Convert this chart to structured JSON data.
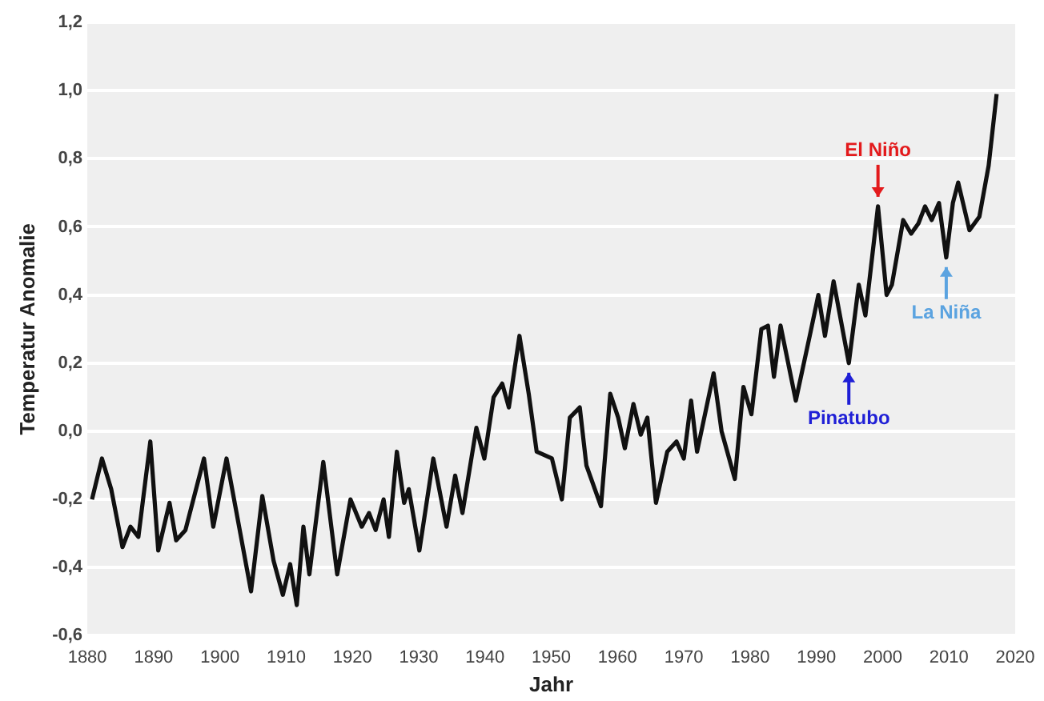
{
  "chart_data": {
    "type": "line",
    "xlabel": "Jahr",
    "ylabel": "Temperatur Anomalie",
    "x": [
      1880.7,
      1882.2,
      1883.6,
      1885.3,
      1886.5,
      1887.7,
      1889.5,
      1890.7,
      1892.4,
      1893.4,
      1894.8,
      1897.6,
      1899,
      1901,
      1904.7,
      1906.4,
      1908.1,
      1909.5,
      1910.6,
      1911.6,
      1912.6,
      1913.5,
      1915.6,
      1917.7,
      1919.7,
      1921.4,
      1922.5,
      1923.5,
      1924.7,
      1925.5,
      1926.7,
      1927.8,
      1928.5,
      1930.1,
      1932.2,
      1934.2,
      1935.5,
      1936.6,
      1938.7,
      1939.9,
      1941.3,
      1942.6,
      1943.6,
      1945.2,
      1946.6,
      1947.8,
      1950.1,
      1951.6,
      1952.8,
      1954.3,
      1955.3,
      1957.5,
      1958.9,
      1960.1,
      1961.1,
      1962.4,
      1963.5,
      1964.5,
      1965.8,
      1967.5,
      1968.9,
      1970,
      1971.1,
      1972,
      1974.5,
      1975.7,
      1977.7,
      1979,
      1980.2,
      1981.7,
      1982.7,
      1983.6,
      1984.6,
      1986.9,
      1989,
      1990.3,
      1991.3,
      1992.6,
      1994.9,
      1996.4,
      1997.4,
      1999.3,
      2000.6,
      2001.4,
      2003.1,
      2004.3,
      2005.4,
      2006.4,
      2007.4,
      2008.5,
      2009.6,
      2010.6,
      2011.4,
      2013.1,
      2014.6,
      2016,
      2017.2
    ],
    "series": [
      {
        "color": "#111111",
        "values": [
          -0.2,
          -0.08,
          -0.17,
          -0.34,
          -0.28,
          -0.31,
          -0.03,
          -0.35,
          -0.21,
          -0.32,
          -0.29,
          -0.08,
          -0.28,
          -0.08,
          -0.47,
          -0.19,
          -0.38,
          -0.48,
          -0.39,
          -0.51,
          -0.28,
          -0.42,
          -0.09,
          -0.42,
          -0.2,
          -0.28,
          -0.24,
          -0.29,
          -0.2,
          -0.31,
          -0.06,
          -0.21,
          -0.17,
          -0.35,
          -0.08,
          -0.28,
          -0.13,
          -0.24,
          0.01,
          -0.08,
          0.1,
          0.14,
          0.07,
          0.28,
          0.11,
          -0.06,
          -0.08,
          -0.2,
          0.04,
          0.07,
          -0.1,
          -0.22,
          0.11,
          0.04,
          -0.05,
          0.08,
          -0.01,
          0.04,
          -0.21,
          -0.06,
          -0.03,
          -0.08,
          0.09,
          -0.06,
          0.17,
          0.0,
          -0.14,
          0.13,
          0.05,
          0.3,
          0.31,
          0.16,
          0.31,
          0.09,
          0.28,
          0.4,
          0.28,
          0.44,
          0.2,
          0.43,
          0.34,
          0.66,
          0.4,
          0.43,
          0.62,
          0.58,
          0.61,
          0.66,
          0.62,
          0.67,
          0.51,
          0.67,
          0.73,
          0.59,
          0.63,
          0.78,
          0.99
        ]
      }
    ],
    "xlim": [
      1880,
      2020
    ],
    "xticks": [
      1880,
      1890,
      1900,
      1910,
      1920,
      1930,
      1940,
      1950,
      1960,
      1970,
      1980,
      1990,
      2000,
      2010,
      2020
    ],
    "ylim": [
      -0.6,
      1.2
    ],
    "yticks": [
      {
        "value": -0.6,
        "label": "-0,6"
      },
      {
        "value": -0.4,
        "label": "-0,4"
      },
      {
        "value": -0.2,
        "label": "-0,2"
      },
      {
        "value": 0,
        "label": "0,0"
      },
      {
        "value": 0.2,
        "label": "0,2"
      },
      {
        "value": 0.4,
        "label": "0,4"
      },
      {
        "value": 0.6,
        "label": "0,6"
      },
      {
        "value": 0.8,
        "label": "0,8"
      },
      {
        "value": 1.0,
        "label": "1,0"
      },
      {
        "value": 1.2,
        "label": "1,2"
      }
    ],
    "grid": "y",
    "annotations": [
      {
        "text": "El Niño",
        "x": 1999.3,
        "y": 0.66
      },
      {
        "text": "Pinatubo",
        "x": 1994.9,
        "y": 0.2
      },
      {
        "text": "La Niña",
        "x": 2009.6,
        "y": 0.51
      }
    ]
  }
}
